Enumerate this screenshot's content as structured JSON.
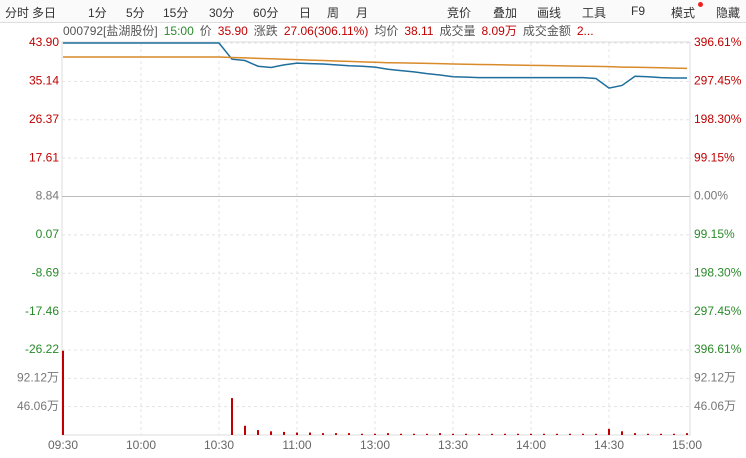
{
  "toolbar": {
    "left": [
      "分时",
      "多日",
      "1分",
      "5分",
      "15分",
      "30分",
      "60分",
      "日",
      "周",
      "月"
    ],
    "right": [
      "竞价",
      "叠加",
      "画线",
      "工具",
      "F9",
      "模式",
      "隐藏"
    ]
  },
  "info": {
    "code": "000792[盐湖股份]",
    "time": "15:00",
    "items": [
      {
        "label": "价",
        "value": "35.90"
      },
      {
        "label": "涨跌",
        "value": "27.06(306.11%)"
      },
      {
        "label": "均价",
        "value": "38.11"
      },
      {
        "label": "成交量",
        "value": "8.09万"
      },
      {
        "label": "成交金额",
        "value": "2..."
      }
    ]
  },
  "chart_data": {
    "type": "line",
    "x": [
      "09:30",
      "09:35",
      "09:40",
      "09:45",
      "09:50",
      "09:55",
      "10:00",
      "10:05",
      "10:10",
      "10:15",
      "10:20",
      "10:25",
      "10:30",
      "10:35",
      "10:40",
      "10:45",
      "10:50",
      "10:55",
      "11:00",
      "11:05",
      "11:10",
      "11:15",
      "11:20",
      "11:25",
      "11:30",
      "13:05",
      "13:10",
      "13:15",
      "13:20",
      "13:25",
      "13:30",
      "13:35",
      "13:40",
      "13:45",
      "13:50",
      "13:55",
      "14:00",
      "14:05",
      "14:10",
      "14:15",
      "14:20",
      "14:25",
      "14:30",
      "14:35",
      "14:40",
      "14:45",
      "14:50",
      "14:55",
      "15:00"
    ],
    "series": [
      {
        "name": "价",
        "color": "#1f6e9c",
        "values": [
          43.9,
          43.9,
          43.9,
          43.9,
          43.9,
          43.9,
          43.9,
          43.9,
          43.9,
          43.9,
          43.9,
          43.9,
          43.9,
          40.2,
          39.9,
          38.6,
          38.3,
          38.9,
          39.3,
          39.2,
          39.1,
          38.9,
          38.7,
          38.6,
          38.4,
          37.9,
          37.6,
          37.3,
          36.9,
          36.6,
          36.2,
          36.1,
          36.0,
          36.0,
          36.0,
          36.0,
          36.0,
          36.0,
          36.0,
          36.0,
          36.0,
          35.8,
          33.6,
          34.2,
          36.3,
          36.2,
          36.0,
          35.9,
          35.9
        ]
      },
      {
        "name": "均价",
        "color": "#d98a2a",
        "values": [
          40.7,
          40.7,
          40.7,
          40.7,
          40.7,
          40.7,
          40.7,
          40.7,
          40.7,
          40.7,
          40.7,
          40.7,
          40.7,
          40.6,
          40.5,
          40.4,
          40.3,
          40.2,
          40.1,
          40.0,
          39.9,
          39.8,
          39.7,
          39.6,
          39.5,
          39.4,
          39.35,
          39.3,
          39.25,
          39.2,
          39.1,
          39.05,
          39.0,
          38.95,
          38.9,
          38.85,
          38.8,
          38.75,
          38.7,
          38.65,
          38.6,
          38.55,
          38.5,
          38.4,
          38.35,
          38.3,
          38.25,
          38.15,
          38.11
        ]
      },
      {
        "name": "成交量",
        "type": "bar",
        "axis": "vol",
        "color": "#c00000",
        "values": [
          137,
          0,
          0,
          0,
          0,
          0,
          0,
          0,
          0,
          0,
          0,
          0,
          0,
          60,
          15,
          8,
          6,
          5,
          4,
          4,
          3,
          3,
          3,
          2,
          2,
          3,
          2,
          2,
          2,
          3,
          2,
          2,
          2,
          2,
          2,
          2,
          2,
          2,
          2,
          2,
          2,
          2,
          10,
          6,
          3,
          2,
          2,
          2,
          3
        ]
      }
    ],
    "ylim": [
      -26.22,
      43.9
    ],
    "yticks": [
      {
        "value": 43.9,
        "label": "43.90"
      },
      35.14,
      26.37,
      17.61,
      8.84,
      0.07,
      -8.69,
      -17.46,
      -26.22
    ],
    "y2lim": [
      -396.61,
      396.61
    ],
    "y2ticks": [
      {
        "value": 396.61,
        "label": "396.61%"
      },
      {
        "value": 297.45,
        "label": "297.45%"
      },
      {
        "value": 198.3,
        "label": "198.30%"
      },
      {
        "value": 99.15,
        "label": "99.15%"
      },
      {
        "value": 0,
        "label": "0.00%"
      },
      {
        "value": -99.15,
        "label": "99.15%"
      },
      {
        "value": -198.3,
        "label": "198.30%"
      },
      {
        "value": -297.45,
        "label": "297.45%"
      },
      {
        "value": -396.61,
        "label": "396.61%"
      }
    ],
    "vollim": [
      0,
      138.18
    ],
    "volticks": [
      {
        "value": 92.12,
        "label": "92.12万"
      },
      {
        "value": 46.06,
        "label": "46.06万"
      }
    ],
    "xticks": [
      "09:30",
      "10:00",
      "10:30",
      "11:00",
      "13:00",
      "13:30",
      "14:00",
      "14:30",
      "15:00"
    ],
    "up_color": "#c00000",
    "down_color": "#2a8a2a",
    "flat_color": "#777777",
    "grid": true
  }
}
